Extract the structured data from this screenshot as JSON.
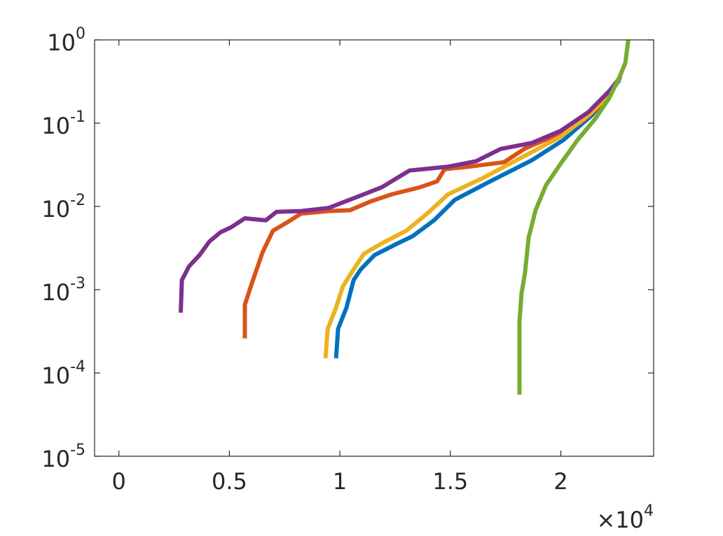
{
  "chart_data": {
    "type": "line",
    "xlim": [
      -0.11,
      2.42
    ],
    "xticks": [
      0,
      0.5,
      1,
      1.5,
      2
    ],
    "x_multiplier": {
      "label": "×10",
      "exponent": "4"
    },
    "yscale": "log",
    "ylim": [
      1e-05,
      1
    ],
    "yticks": [
      {
        "value": 1e-05,
        "label": "10",
        "exponent": "-5"
      },
      {
        "value": 0.0001,
        "label": "10",
        "exponent": "-4"
      },
      {
        "value": 0.001,
        "label": "10",
        "exponent": "-3"
      },
      {
        "value": 0.01,
        "label": "10",
        "exponent": "-2"
      },
      {
        "value": 0.1,
        "label": "10",
        "exponent": "-1"
      },
      {
        "value": 1,
        "label": "10",
        "exponent": "0"
      }
    ],
    "grid": false,
    "series": [
      {
        "color": "#0072BD",
        "x": [
          0.983,
          0.992,
          1.03,
          1.062,
          1.094,
          1.157,
          1.252,
          1.33,
          1.426,
          1.52,
          1.68,
          1.87,
          2.013,
          2.14,
          2.266
        ],
        "values": [
          0.00015,
          0.00034,
          0.00061,
          0.0013,
          0.00175,
          0.0026,
          0.0035,
          0.0044,
          0.0068,
          0.012,
          0.02,
          0.036,
          0.063,
          0.124,
          0.33
        ]
      },
      {
        "color": "#D95319",
        "x": [
          0.57,
          0.57,
          0.602,
          0.65,
          0.697,
          0.76,
          0.824,
          0.95,
          1.046,
          1.14,
          1.236,
          1.363,
          1.44,
          1.474,
          1.585,
          1.743,
          1.84,
          1.965,
          2.09,
          2.2,
          2.27
        ],
        "values": [
          0.00026,
          0.00066,
          0.0012,
          0.0028,
          0.0051,
          0.0064,
          0.0082,
          0.0088,
          0.009,
          0.0115,
          0.014,
          0.017,
          0.02,
          0.028,
          0.03,
          0.034,
          0.05,
          0.069,
          0.102,
          0.182,
          0.36
        ]
      },
      {
        "color": "#EDB120",
        "x": [
          0.935,
          0.945,
          0.983,
          1.014,
          1.062,
          1.109,
          1.19,
          1.3,
          1.395,
          1.49,
          1.648,
          1.84,
          2.0,
          2.125,
          2.22,
          2.27
        ],
        "values": [
          0.00015,
          0.00034,
          0.00061,
          0.0011,
          0.00175,
          0.0027,
          0.0036,
          0.0051,
          0.0082,
          0.014,
          0.022,
          0.041,
          0.069,
          0.124,
          0.221,
          0.36
        ]
      },
      {
        "color": "#7E2F8E",
        "x": [
          0.28,
          0.285,
          0.317,
          0.365,
          0.41,
          0.46,
          0.507,
          0.57,
          0.665,
          0.713,
          0.824,
          0.95,
          1.078,
          1.19,
          1.315,
          1.49,
          1.617,
          1.727,
          1.87,
          2.0,
          2.125,
          2.22,
          2.27
        ],
        "values": [
          0.00053,
          0.0013,
          0.0019,
          0.0026,
          0.0038,
          0.0049,
          0.0056,
          0.0072,
          0.0068,
          0.0086,
          0.0088,
          0.0096,
          0.013,
          0.017,
          0.027,
          0.03,
          0.035,
          0.049,
          0.058,
          0.081,
          0.136,
          0.244,
          0.36
        ]
      },
      {
        "color": "#77AC30",
        "x": [
          1.813,
          1.813,
          1.822,
          1.838,
          1.854,
          1.886,
          1.933,
          1.997,
          2.076,
          2.155,
          2.219,
          2.266,
          2.292,
          2.304,
          2.304
        ],
        "values": [
          5.5e-05,
          0.00041,
          0.0009,
          0.0016,
          0.0042,
          0.0091,
          0.018,
          0.032,
          0.063,
          0.112,
          0.2,
          0.36,
          0.53,
          0.94,
          1.0
        ]
      }
    ]
  }
}
